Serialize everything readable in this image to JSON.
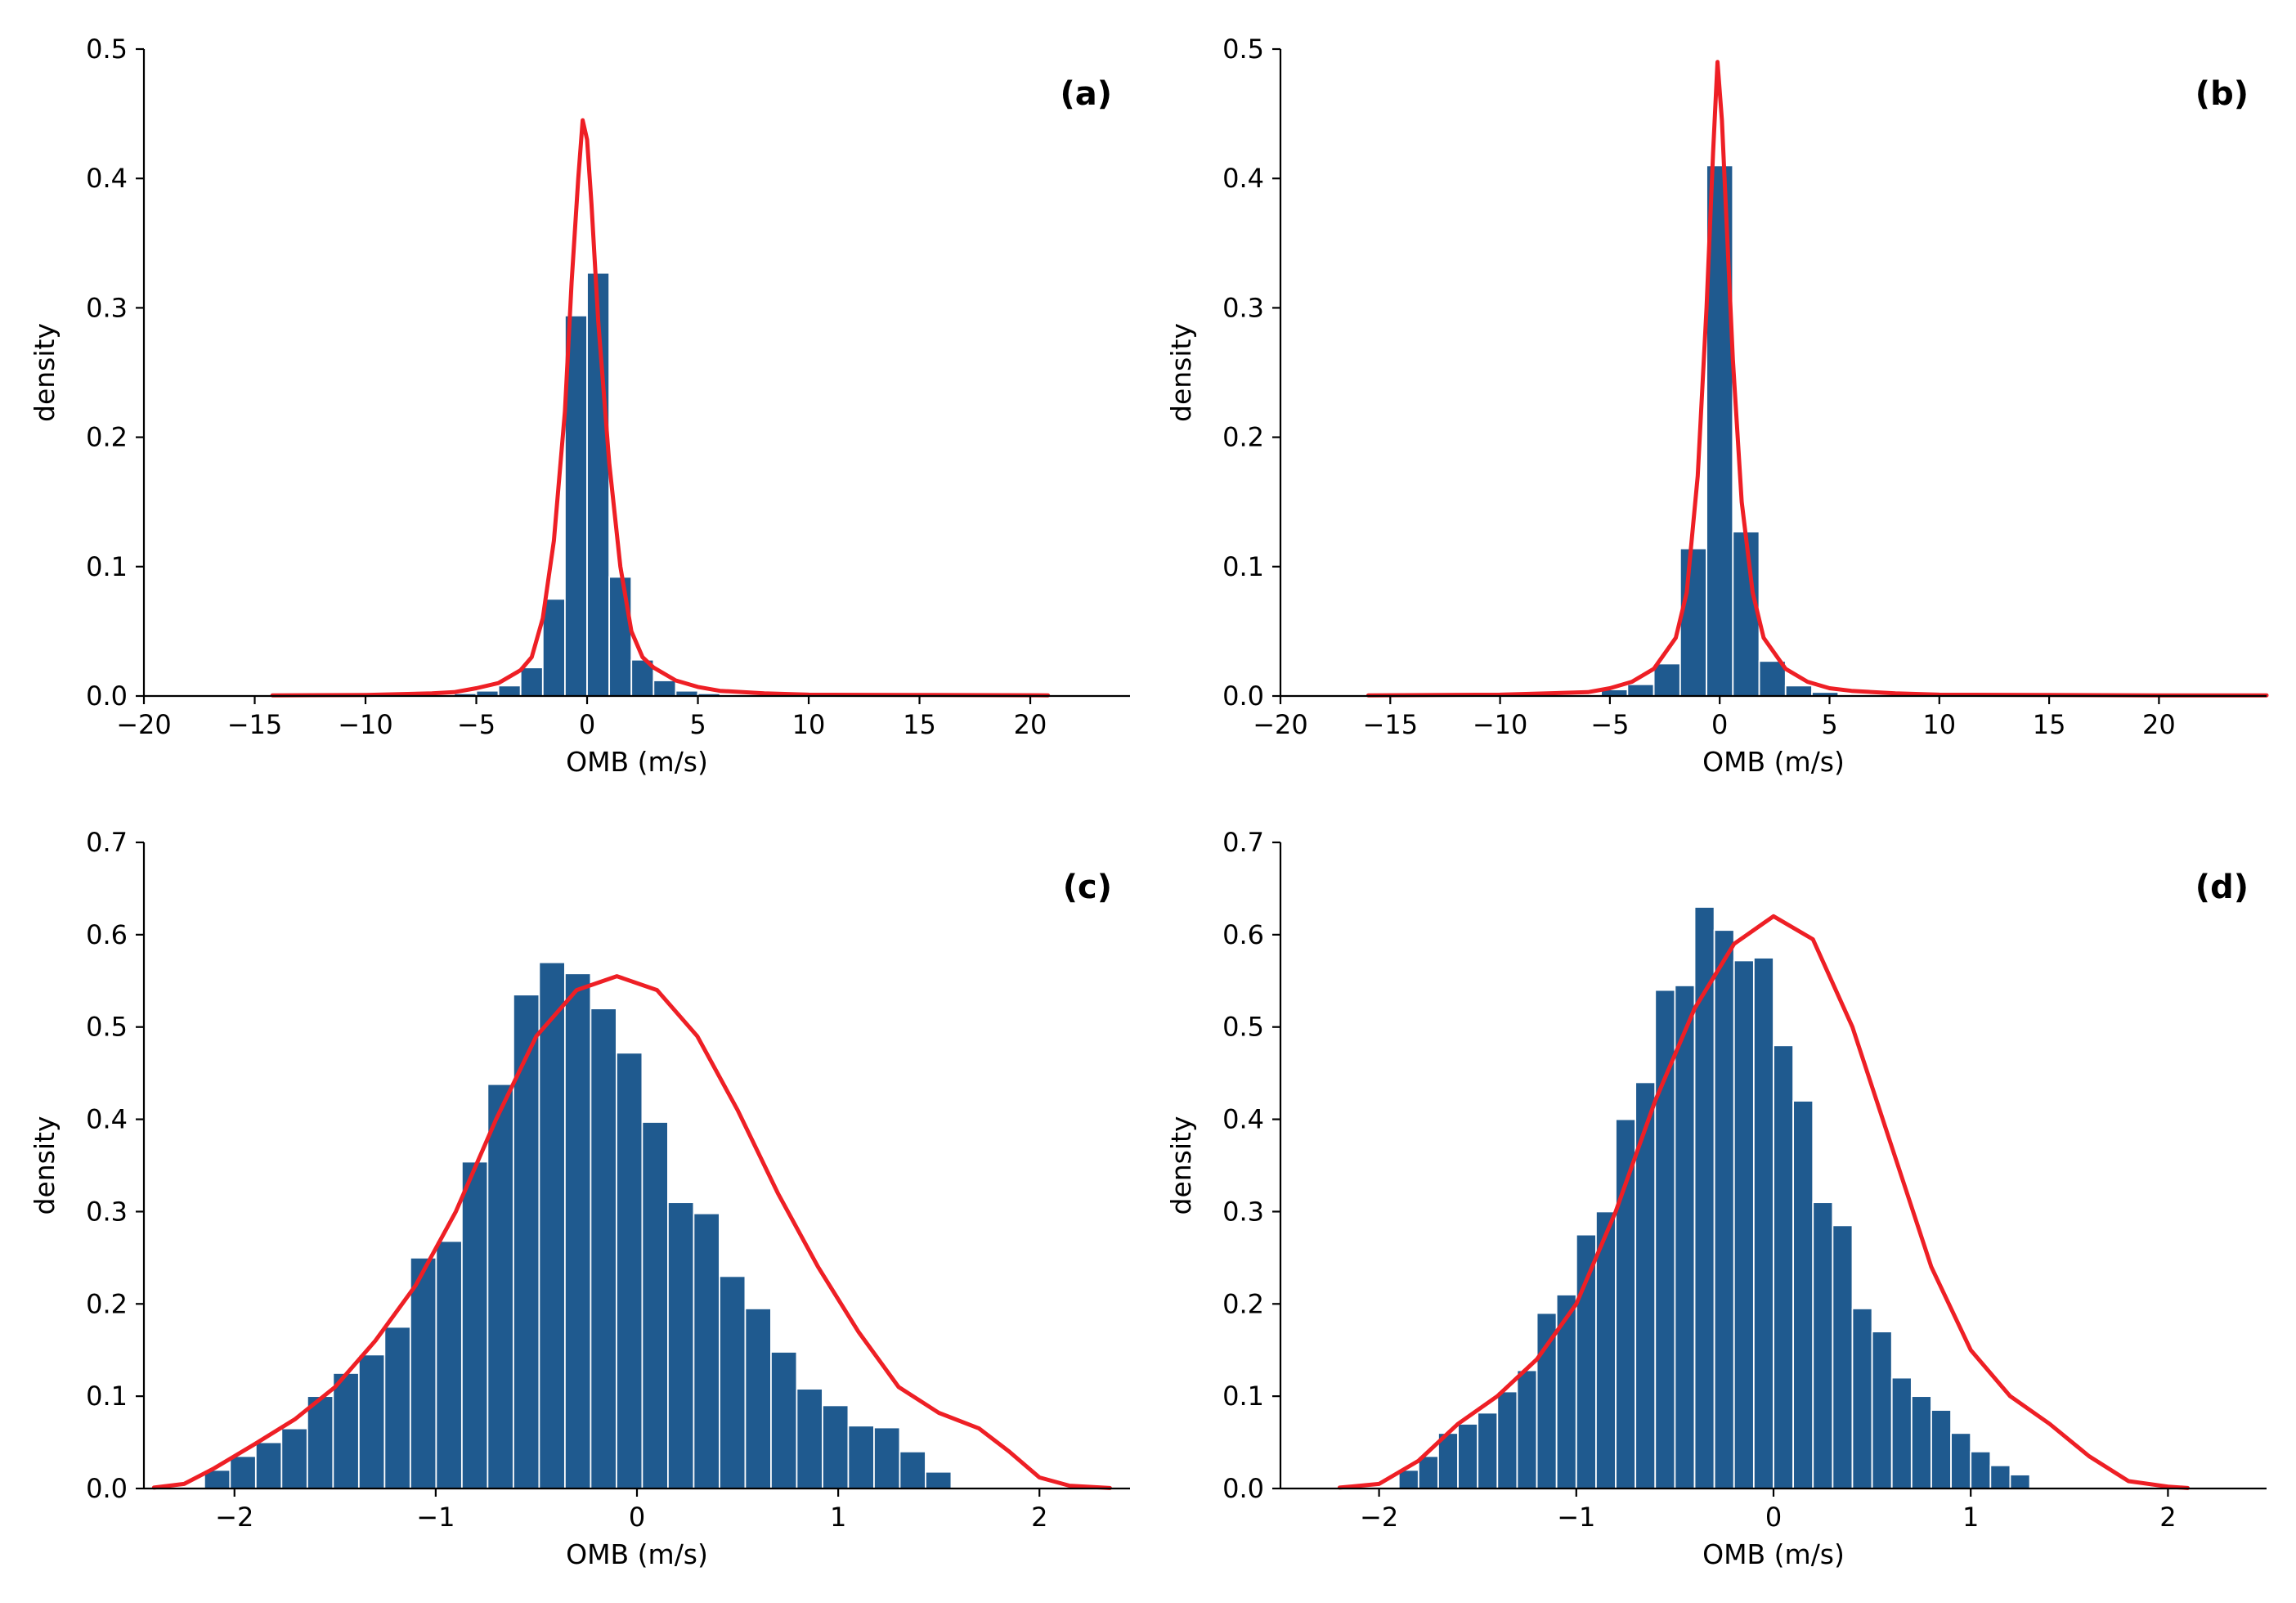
{
  "figure": {
    "colors": {
      "bar": "#1f5a8f",
      "kde": "#ee1f25",
      "axis": "#000000"
    }
  },
  "chart_data": [
    {
      "panel_label": "(a)",
      "type": "bar",
      "xlabel": "OMB (m/s)",
      "ylabel": "density",
      "xlim": [
        -20,
        24.5
      ],
      "ylim": [
        0,
        0.5
      ],
      "xticks": [
        -20,
        -15,
        -10,
        -5,
        0,
        5,
        10,
        15,
        20
      ],
      "xtick_labels": [
        "−20",
        "−15",
        "−10",
        "−5",
        "0",
        "5",
        "10",
        "15",
        "20"
      ],
      "yticks": [
        0.0,
        0.1,
        0.2,
        0.3,
        0.4,
        0.5
      ],
      "ytick_labels": [
        "0.0",
        "0.1",
        "0.2",
        "0.3",
        "0.4",
        "0.5"
      ],
      "bins": {
        "edges": [
          -6,
          -5,
          -4,
          -3,
          -2,
          -1,
          0,
          1,
          2,
          3,
          4,
          5,
          6
        ],
        "values": [
          0.002,
          0.004,
          0.008,
          0.022,
          0.075,
          0.294,
          0.327,
          0.092,
          0.028,
          0.012,
          0.004,
          0.002
        ]
      },
      "kde": {
        "x": [
          -14.2,
          -10,
          -7,
          -6,
          -5,
          -4,
          -3,
          -2.5,
          -2,
          -1.5,
          -1,
          -0.7,
          -0.4,
          -0.2,
          0,
          0.2,
          0.5,
          1,
          1.5,
          2,
          2.5,
          3,
          4,
          5,
          6,
          8,
          10,
          15,
          20.8
        ],
        "y": [
          0.0005,
          0.0008,
          0.002,
          0.003,
          0.006,
          0.01,
          0.02,
          0.03,
          0.06,
          0.12,
          0.22,
          0.32,
          0.4,
          0.445,
          0.43,
          0.38,
          0.29,
          0.18,
          0.1,
          0.05,
          0.03,
          0.022,
          0.012,
          0.007,
          0.004,
          0.002,
          0.001,
          0.0008,
          0.0005
        ]
      }
    },
    {
      "panel_label": "(b)",
      "type": "bar",
      "xlabel": "OMB (m/s)",
      "ylabel": "density",
      "xlim": [
        -20,
        24.9
      ],
      "ylim": [
        0,
        0.5
      ],
      "xticks": [
        -20,
        -15,
        -10,
        -5,
        0,
        5,
        10,
        15,
        20
      ],
      "xtick_labels": [
        "−20",
        "−15",
        "−10",
        "−5",
        "0",
        "5",
        "10",
        "15",
        "20"
      ],
      "yticks": [
        0.0,
        0.1,
        0.2,
        0.3,
        0.4,
        0.5
      ],
      "ytick_labels": [
        "0.0",
        "0.1",
        "0.2",
        "0.3",
        "0.4",
        "0.5"
      ],
      "bins": {
        "edges": [
          -5.4,
          -4.2,
          -3.0,
          -1.8,
          -0.6,
          0.6,
          1.8,
          3.0,
          4.2,
          5.4
        ],
        "values": [
          0.005,
          0.009,
          0.025,
          0.114,
          0.41,
          0.127,
          0.027,
          0.008,
          0.003
        ]
      },
      "kde": {
        "x": [
          -16,
          -10,
          -6,
          -5,
          -4,
          -3,
          -2,
          -1.5,
          -1,
          -0.6,
          -0.3,
          -0.1,
          0.1,
          0.3,
          0.6,
          1,
          1.5,
          2,
          3,
          4,
          5,
          6,
          8,
          10,
          15,
          20,
          24.9
        ],
        "y": [
          0.0005,
          0.001,
          0.003,
          0.006,
          0.011,
          0.021,
          0.045,
          0.08,
          0.17,
          0.3,
          0.42,
          0.49,
          0.445,
          0.37,
          0.26,
          0.15,
          0.08,
          0.045,
          0.021,
          0.011,
          0.006,
          0.004,
          0.002,
          0.001,
          0.0008,
          0.0005,
          0.0005
        ]
      }
    },
    {
      "panel_label": "(c)",
      "type": "bar",
      "xlabel": "OMB (m/s)",
      "ylabel": "density",
      "xlim": [
        -2.45,
        2.45
      ],
      "ylim": [
        0,
        0.7
      ],
      "xticks": [
        -2,
        -1,
        0,
        1,
        2
      ],
      "xtick_labels": [
        "−2",
        "−1",
        "0",
        "1",
        "2"
      ],
      "yticks": [
        0.0,
        0.1,
        0.2,
        0.3,
        0.4,
        0.5,
        0.6,
        0.7
      ],
      "ytick_labels": [
        "0.0",
        "0.1",
        "0.2",
        "0.3",
        "0.4",
        "0.5",
        "0.6",
        "0.7"
      ],
      "bins": {
        "start": -2.15,
        "width": 0.128,
        "values": [
          0.02,
          0.035,
          0.05,
          0.065,
          0.1,
          0.125,
          0.145,
          0.175,
          0.25,
          0.268,
          0.354,
          0.438,
          0.535,
          0.57,
          0.558,
          0.52,
          0.472,
          0.397,
          0.31,
          0.298,
          0.23,
          0.195,
          0.148,
          0.108,
          0.09,
          0.068,
          0.066,
          0.04,
          0.018
        ]
      },
      "kde": {
        "x": [
          -2.4,
          -2.25,
          -2.1,
          -1.9,
          -1.7,
          -1.5,
          -1.3,
          -1.1,
          -0.9,
          -0.7,
          -0.5,
          -0.3,
          -0.1,
          0.1,
          0.3,
          0.5,
          0.7,
          0.9,
          1.1,
          1.3,
          1.5,
          1.7,
          1.85,
          2.0,
          2.15,
          2.35
        ],
        "y": [
          0.001,
          0.005,
          0.022,
          0.048,
          0.075,
          0.11,
          0.16,
          0.22,
          0.3,
          0.4,
          0.49,
          0.54,
          0.555,
          0.54,
          0.49,
          0.41,
          0.32,
          0.24,
          0.17,
          0.11,
          0.082,
          0.065,
          0.04,
          0.012,
          0.003,
          0.0005
        ]
      }
    },
    {
      "panel_label": "(d)",
      "type": "bar",
      "xlabel": "OMB (m/s)",
      "ylabel": "density",
      "xlim": [
        -2.5,
        2.5
      ],
      "ylim": [
        0,
        0.7
      ],
      "xticks": [
        -2,
        -1,
        0,
        1,
        2
      ],
      "xtick_labels": [
        "−2",
        "−1",
        "0",
        "1",
        "2"
      ],
      "yticks": [
        0.0,
        0.1,
        0.2,
        0.3,
        0.4,
        0.5,
        0.6,
        0.7
      ],
      "ytick_labels": [
        "0.0",
        "0.1",
        "0.2",
        "0.3",
        "0.4",
        "0.5",
        "0.6",
        "0.7"
      ],
      "bins": {
        "start": -1.9,
        "width": 0.1,
        "values": [
          0.02,
          0.035,
          0.06,
          0.07,
          0.082,
          0.105,
          0.128,
          0.19,
          0.21,
          0.275,
          0.3,
          0.4,
          0.44,
          0.54,
          0.545,
          0.63,
          0.605,
          0.572,
          0.575,
          0.48,
          0.42,
          0.31,
          0.285,
          0.195,
          0.17,
          0.12,
          0.1,
          0.085,
          0.06,
          0.04,
          0.025,
          0.015
        ]
      },
      "kde": {
        "x": [
          -2.2,
          -2.0,
          -1.8,
          -1.6,
          -1.4,
          -1.2,
          -1.0,
          -0.8,
          -0.6,
          -0.4,
          -0.2,
          0.0,
          0.2,
          0.4,
          0.6,
          0.8,
          1.0,
          1.2,
          1.4,
          1.6,
          1.8,
          2.0,
          2.1
        ],
        "y": [
          0.001,
          0.005,
          0.03,
          0.07,
          0.1,
          0.14,
          0.2,
          0.3,
          0.42,
          0.52,
          0.59,
          0.62,
          0.595,
          0.5,
          0.37,
          0.24,
          0.15,
          0.1,
          0.07,
          0.035,
          0.008,
          0.002,
          0.0005
        ]
      }
    }
  ]
}
